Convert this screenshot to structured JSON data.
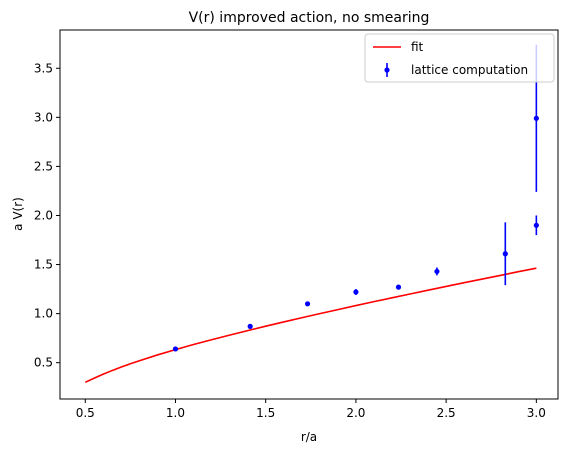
{
  "chart_data": {
    "type": "scatter",
    "title": "V(r) improved action, no smearing",
    "xlabel": "r/a",
    "ylabel": "a V(r)",
    "xlim": [
      0.36,
      3.12
    ],
    "ylim": [
      0.13,
      3.89
    ],
    "xticks": [
      0.5,
      1.0,
      1.5,
      2.0,
      2.5,
      3.0
    ],
    "xtick_labels": [
      "0.5",
      "1.0",
      "1.5",
      "2.0",
      "2.5",
      "3.0"
    ],
    "yticks": [
      0.5,
      1.0,
      1.5,
      2.0,
      2.5,
      3.0,
      3.5
    ],
    "ytick_labels": [
      "0.5",
      "1.0",
      "1.5",
      "2.0",
      "2.5",
      "3.0",
      "3.5"
    ],
    "grid": false,
    "legend_position": "top-right",
    "series": [
      {
        "name": "fit",
        "kind": "line",
        "color": "#ff0000",
        "x": [
          0.5,
          0.55,
          0.6,
          0.65,
          0.7,
          0.75,
          0.8,
          0.9,
          1.0,
          1.1,
          1.2,
          1.3,
          1.4,
          1.5,
          1.6,
          1.7,
          1.8,
          1.9,
          2.0,
          2.1,
          2.2,
          2.3,
          2.4,
          2.5,
          2.6,
          2.7,
          2.8,
          2.9,
          3.0
        ],
        "y": [
          0.3,
          0.343,
          0.383,
          0.421,
          0.456,
          0.489,
          0.52,
          0.579,
          0.633,
          0.685,
          0.734,
          0.781,
          0.827,
          0.872,
          0.915,
          0.958,
          1.0,
          1.041,
          1.082,
          1.122,
          1.161,
          1.2,
          1.239,
          1.277,
          1.315,
          1.352,
          1.389,
          1.427,
          1.463
        ]
      },
      {
        "name": "lattice computation",
        "kind": "errorbar",
        "color": "#0000ff",
        "x": [
          1.0,
          1.414,
          1.732,
          2.0,
          2.236,
          2.449,
          2.828,
          3.0,
          3.0
        ],
        "y": [
          0.64,
          0.87,
          1.1,
          1.22,
          1.27,
          1.43,
          1.61,
          1.9,
          2.99
        ],
        "yerr": [
          0.01,
          0.015,
          0.015,
          0.03,
          0.02,
          0.04,
          0.32,
          0.1,
          0.75
        ]
      }
    ]
  }
}
